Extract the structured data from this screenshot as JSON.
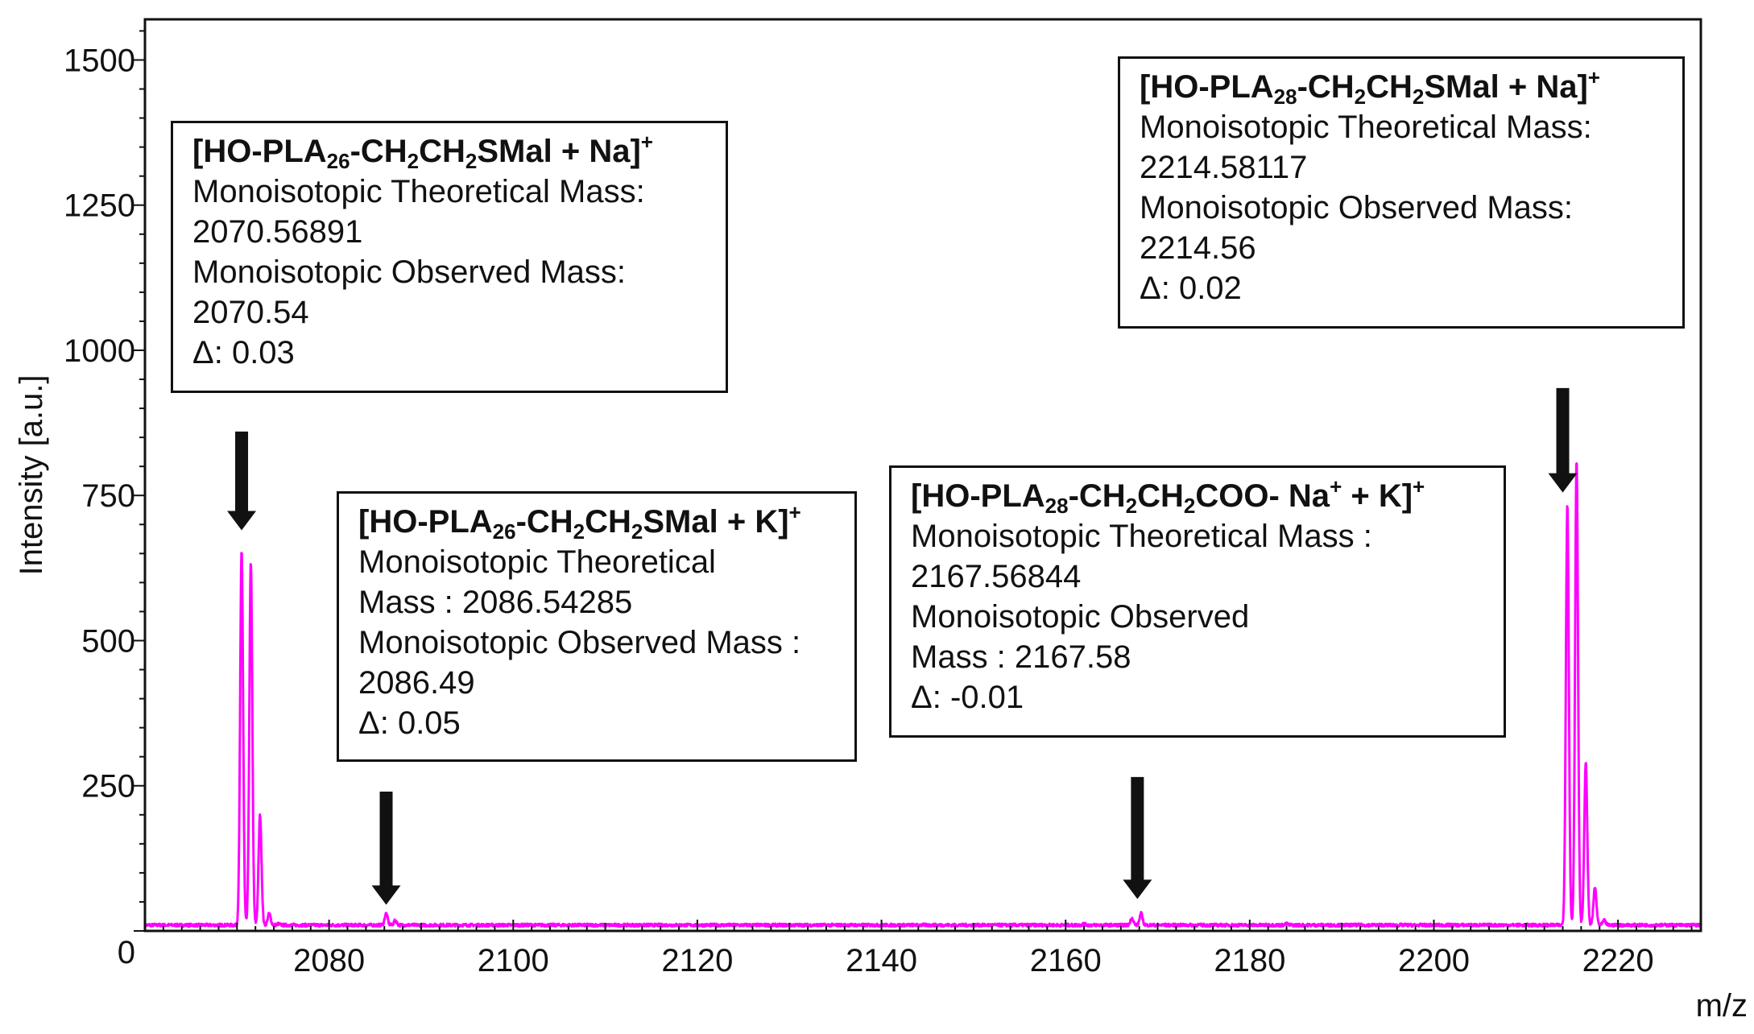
{
  "chart_data": {
    "type": "line",
    "xlabel": "m/z",
    "ylabel": "Intensity [a.u.]",
    "xlim": [
      2060,
      2229
    ],
    "ylim": [
      0,
      1570
    ],
    "x_ticks": [
      2080,
      2100,
      2120,
      2140,
      2160,
      2180,
      2200,
      2220
    ],
    "y_ticks": [
      0,
      250,
      500,
      750,
      1000,
      1250,
      1500
    ],
    "grid": false,
    "series_color": "#ff00ff",
    "baseline": 10,
    "peaks": [
      {
        "x": 2070.5,
        "y": 655
      },
      {
        "x": 2071.5,
        "y": 635
      },
      {
        "x": 2072.5,
        "y": 200
      },
      {
        "x": 2073.5,
        "y": 30
      },
      {
        "x": 2074.5,
        "y": 12
      },
      {
        "x": 2086.2,
        "y": 30
      },
      {
        "x": 2087.2,
        "y": 18
      },
      {
        "x": 2162.0,
        "y": 12
      },
      {
        "x": 2167.2,
        "y": 22
      },
      {
        "x": 2168.2,
        "y": 30
      },
      {
        "x": 2184.0,
        "y": 12
      },
      {
        "x": 2214.5,
        "y": 735
      },
      {
        "x": 2215.5,
        "y": 810
      },
      {
        "x": 2216.5,
        "y": 290
      },
      {
        "x": 2217.5,
        "y": 75
      },
      {
        "x": 2218.5,
        "y": 18
      }
    ],
    "arrows": [
      {
        "x": 2070.5,
        "y_top": 860,
        "y_bottom": 690
      },
      {
        "x": 2086.2,
        "y_top": 240,
        "y_bottom": 45
      },
      {
        "x": 2167.8,
        "y_top": 265,
        "y_bottom": 55
      },
      {
        "x": 2214.0,
        "y_top": 935,
        "y_bottom": 755
      }
    ],
    "annotations": [
      {
        "title": {
          "pre": "[HO-PLA",
          "sub1": "26",
          "mid1": "-CH",
          "sub2": "2",
          "mid2": "CH",
          "sub3": "2",
          "mid3": "SMal + Na]",
          "sup1": "+",
          "mid4": "",
          "sup2": "",
          "post": ""
        },
        "lines": [
          "Monoisotopic Theoretical Mass:",
          "2070.56891",
          "Monoisotopic Observed Mass:",
          "2070.54",
          "Δ: 0.03"
        ]
      },
      {
        "title": {
          "pre": "[HO-PLA",
          "sub1": "26",
          "mid1": "-CH",
          "sub2": "2",
          "mid2": "CH",
          "sub3": "2",
          "mid3": "SMal + K]",
          "sup1": "+",
          "mid4": "",
          "sup2": "",
          "post": ""
        },
        "lines": [
          "Monoisotopic Theoretical",
          "Mass : 2086.54285",
          "Monoisotopic Observed Mass :",
          "2086.49",
          "Δ: 0.05"
        ]
      },
      {
        "title": {
          "pre": "[HO-PLA",
          "sub1": "28",
          "mid1": "-CH",
          "sub2": "2",
          "mid2": "CH",
          "sub3": "2",
          "mid3": "COO- Na",
          "sup1": "+",
          "mid4": " + K]",
          "sup2": "+",
          "post": ""
        },
        "lines": [
          "Monoisotopic Theoretical Mass :",
          "2167.56844",
          "Monoisotopic Observed",
          "Mass : 2167.58",
          "Δ: -0.01"
        ]
      },
      {
        "title": {
          "pre": "[HO-PLA",
          "sub1": "28",
          "mid1": "-CH",
          "sub2": "2",
          "mid2": "CH",
          "sub3": "2",
          "mid3": "SMal + Na]",
          "sup1": "+",
          "mid4": "",
          "sup2": "",
          "post": ""
        },
        "lines": [
          "Monoisotopic Theoretical Mass:",
          "2214.58117",
          "Monoisotopic Observed Mass:",
          "2214.56",
          "Δ: 0.02"
        ]
      }
    ]
  }
}
